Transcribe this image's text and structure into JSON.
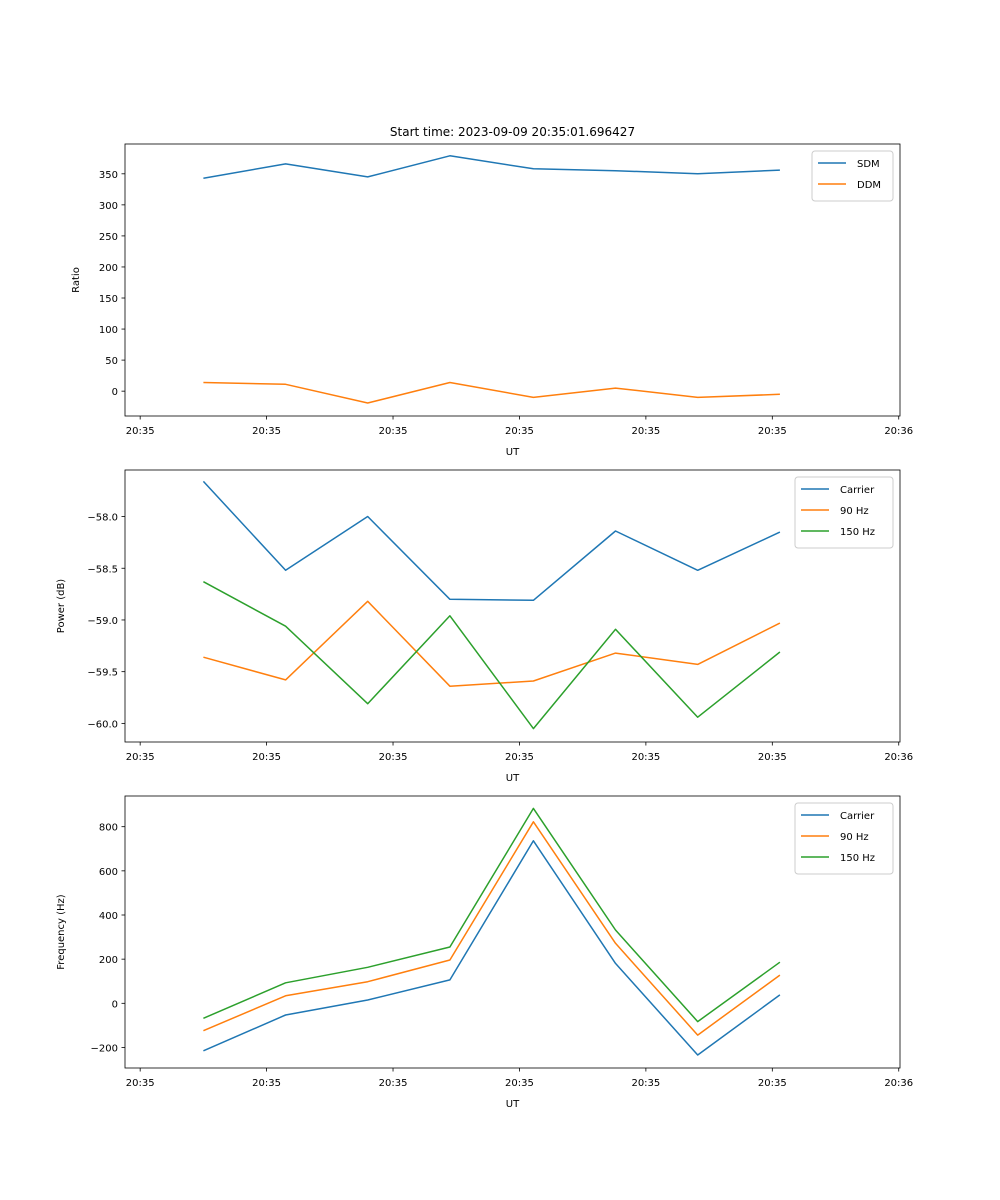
{
  "colors": {
    "blue": "#1f77b4",
    "orange": "#ff7f0e",
    "green": "#2ca02c"
  },
  "chart_data": [
    {
      "type": "line",
      "title": "Start time: 2023-09-09 20:35:01.696427",
      "xlabel": "UT",
      "ylabel": "Ratio",
      "x_unit": "seconds after 20:35:00",
      "x": [
        5.0,
        11.5,
        18.0,
        24.5,
        31.1,
        37.6,
        44.1,
        50.6
      ],
      "xlim": [
        -1.2,
        60.1
      ],
      "xticks": [
        0,
        10,
        20,
        30,
        40,
        50,
        60
      ],
      "xtick_labels": [
        "20:35",
        "20:35",
        "20:35",
        "20:35",
        "20:35",
        "20:35",
        "20:36"
      ],
      "ylim": [
        -40,
        398
      ],
      "yticks": [
        0,
        50,
        100,
        150,
        200,
        250,
        300,
        350
      ],
      "ytick_labels": [
        "0",
        "50",
        "100",
        "150",
        "200",
        "250",
        "300",
        "350"
      ],
      "legend": "top-right",
      "grid": false,
      "series": [
        {
          "name": "SDM",
          "color": "#1f77b4",
          "values": [
            343,
            366,
            345,
            379,
            358,
            355,
            350,
            356
          ]
        },
        {
          "name": "DDM",
          "color": "#ff7f0e",
          "values": [
            14,
            11,
            -19,
            14,
            -10,
            5,
            -10,
            -5
          ]
        }
      ]
    },
    {
      "type": "line",
      "title": "",
      "xlabel": "UT",
      "ylabel": "Power (dB)",
      "x_unit": "seconds after 20:35:00",
      "x": [
        5.0,
        11.5,
        18.0,
        24.5,
        31.1,
        37.6,
        44.1,
        50.6
      ],
      "xlim": [
        -1.2,
        60.1
      ],
      "xticks": [
        0,
        10,
        20,
        30,
        40,
        50,
        60
      ],
      "xtick_labels": [
        "20:35",
        "20:35",
        "20:35",
        "20:35",
        "20:35",
        "20:35",
        "20:36"
      ],
      "ylim": [
        -60.18,
        -57.55
      ],
      "yticks": [
        -60.0,
        -59.5,
        -59.0,
        -58.5,
        -58.0
      ],
      "ytick_labels": [
        "−60.0",
        "−59.5",
        "−59.0",
        "−58.5",
        "−58.0"
      ],
      "legend": "top-right",
      "grid": false,
      "series": [
        {
          "name": "Carrier",
          "color": "#1f77b4",
          "values": [
            -57.66,
            -58.52,
            -58.0,
            -58.8,
            -58.81,
            -58.14,
            -58.52,
            -58.15
          ]
        },
        {
          "name": "90 Hz",
          "color": "#ff7f0e",
          "values": [
            -59.36,
            -59.58,
            -58.82,
            -59.64,
            -59.59,
            -59.32,
            -59.43,
            -59.03
          ]
        },
        {
          "name": "150 Hz",
          "color": "#2ca02c",
          "values": [
            -58.63,
            -59.06,
            -59.81,
            -58.96,
            -60.05,
            -59.09,
            -59.94,
            -59.31
          ]
        }
      ]
    },
    {
      "type": "line",
      "title": "",
      "xlabel": "UT",
      "ylabel": "Frequency (Hz)",
      "x_unit": "seconds after 20:35:00",
      "x": [
        5.0,
        11.5,
        18.0,
        24.5,
        31.1,
        37.6,
        44.1,
        50.6
      ],
      "xlim": [
        -1.2,
        60.1
      ],
      "xticks": [
        0,
        10,
        20,
        30,
        40,
        50,
        60
      ],
      "xtick_labels": [
        "20:35",
        "20:35",
        "20:35",
        "20:35",
        "20:35",
        "20:35",
        "20:36"
      ],
      "ylim": [
        -293,
        939
      ],
      "yticks": [
        -200,
        0,
        200,
        400,
        600,
        800
      ],
      "ytick_labels": [
        "−200",
        "0",
        "200",
        "400",
        "600",
        "800"
      ],
      "legend": "top-right",
      "grid": false,
      "series": [
        {
          "name": "Carrier",
          "color": "#1f77b4",
          "values": [
            -215,
            -53,
            15,
            106,
            736,
            181,
            -234,
            38
          ]
        },
        {
          "name": "90 Hz",
          "color": "#ff7f0e",
          "values": [
            -124,
            34,
            98,
            196,
            822,
            272,
            -144,
            128
          ]
        },
        {
          "name": "150 Hz",
          "color": "#2ca02c",
          "values": [
            -68,
            93,
            163,
            255,
            883,
            332,
            -83,
            186
          ]
        }
      ]
    }
  ]
}
